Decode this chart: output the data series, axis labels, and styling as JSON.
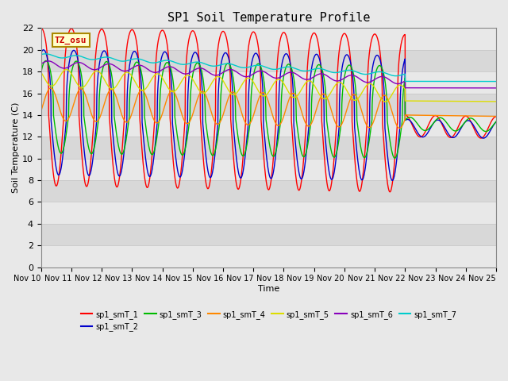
{
  "title": "SP1 Soil Temperature Profile",
  "xlabel": "Time",
  "ylabel": "Soil Temperature (C)",
  "ylim": [
    0,
    22
  ],
  "yticks": [
    0,
    2,
    4,
    6,
    8,
    10,
    12,
    14,
    16,
    18,
    20,
    22
  ],
  "xtick_labels": [
    "Nov 10",
    "Nov 11",
    "Nov 12",
    "Nov 13",
    "Nov 14",
    "Nov 15",
    "Nov 16",
    "Nov 17",
    "Nov 18",
    "Nov 19",
    "Nov 20",
    "Nov 21",
    "Nov 22",
    "Nov 23",
    "Nov 24",
    "Nov 25"
  ],
  "colors": {
    "sp1_smT_1": "#ff0000",
    "sp1_smT_2": "#0000cc",
    "sp1_smT_3": "#00bb00",
    "sp1_smT_4": "#ff8800",
    "sp1_smT_5": "#dddd00",
    "sp1_smT_6": "#8800bb",
    "sp1_smT_7": "#00cccc"
  },
  "legend_labels": [
    "sp1_smT_1",
    "sp1_smT_2",
    "sp1_smT_3",
    "sp1_smT_4",
    "sp1_smT_5",
    "sp1_smT_6",
    "sp1_smT_7"
  ],
  "tz_label": "TZ_osu",
  "fig_bg_color": "#e8e8e8",
  "plot_bg_color": "#d8d8d8",
  "grid_color": "#f0f0f0"
}
